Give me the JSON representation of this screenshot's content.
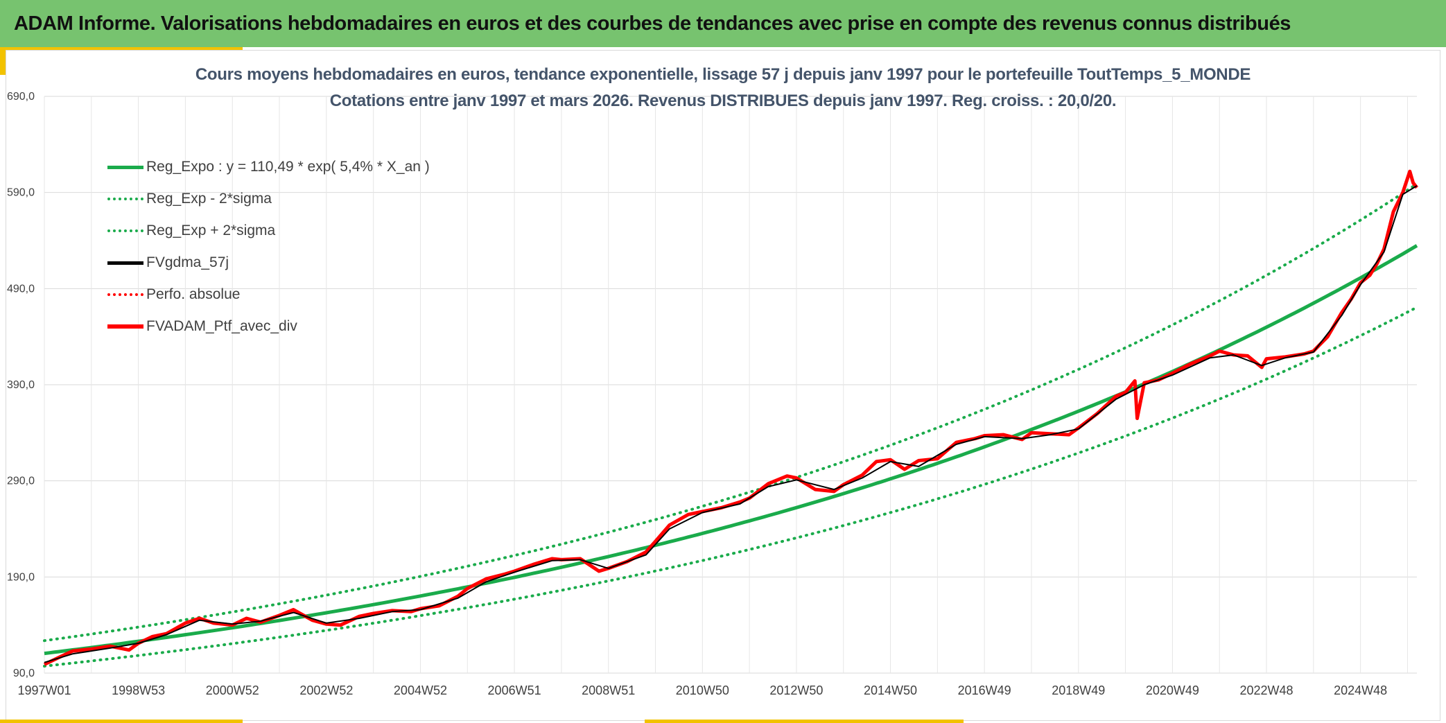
{
  "header": {
    "title": "ADAM Informe. Valorisations hebdomadaires en euros et des courbes de tendances avec prise en compte des revenus connus distribués"
  },
  "colors": {
    "header_bg": "#77c36f",
    "accent": "#f2c200",
    "regression": "#1aab4b",
    "price": "#ff0000",
    "smoothed": "#000000",
    "title_text": "#44546a"
  },
  "chart_data": {
    "type": "line",
    "title_line1": "Cours moyens hebdomadaires en euros, tendance exponentielle, lissage 57 j depuis janv 1997 pour le portefeuille ToutTemps_5_MONDE",
    "title_line2": "Cotations entre janv 1997 et mars 2026. Revenus DISTRIBUES depuis janv 1997. Reg. croiss. : 20,0/20.",
    "x_range": [
      1997.0,
      2026.2
    ],
    "ylim": [
      90,
      690
    ],
    "y_ticks": [
      90,
      190,
      290,
      390,
      490,
      590,
      690
    ],
    "y_tick_labels": [
      "90,0",
      "190,0",
      "290,0",
      "390,0",
      "490,0",
      "590,0",
      "690,0"
    ],
    "x_tick_labels": [
      "1997W01",
      "1998W53",
      "2000W52",
      "2002W52",
      "2004W52",
      "2006W51",
      "2008W51",
      "2010W50",
      "2012W50",
      "2014W50",
      "2016W49",
      "2018W49",
      "2020W49",
      "2022W48",
      "2024W48"
    ],
    "x_tick_positions": [
      1997.0,
      1999.0,
      2001.0,
      2003.0,
      2005.0,
      2007.0,
      2009.0,
      2011.0,
      2013.0,
      2015.0,
      2017.0,
      2019.0,
      2021.0,
      2023.0,
      2025.0
    ],
    "grid": true,
    "legend_position": "top-left",
    "legend": [
      {
        "label": "Reg_Expo : y = 110,49 * exp( 5,4% *  X_an )",
        "color": "#1aab4b",
        "style": "solid"
      },
      {
        "label": "Reg_Exp - 2*sigma",
        "color": "#1aab4b",
        "style": "dotted"
      },
      {
        "label": "Reg_Exp + 2*sigma",
        "color": "#1aab4b",
        "style": "dotted"
      },
      {
        "label": "FVgdma_57j",
        "color": "#000000",
        "style": "solid"
      },
      {
        "label": "Perfo. absolue",
        "color": "#ff0000",
        "style": "dotted"
      },
      {
        "label": "FVADAM_Ptf_avec_div",
        "color": "#ff0000",
        "style": "solid"
      }
    ],
    "regression": {
      "a": 110.49,
      "rate": 0.054,
      "start_year": 1997.0,
      "minus_2sigma_factor": 0.88,
      "plus_2sigma_factor": 1.12
    },
    "series": [
      {
        "name": "FVADAM_Ptf_avec_div",
        "x": [
          1997.0,
          1997.3,
          1997.6,
          1998.0,
          1998.4,
          1998.8,
          1999.0,
          1999.3,
          1999.6,
          2000.0,
          2000.3,
          2000.6,
          2001.0,
          2001.3,
          2001.6,
          2002.0,
          2002.3,
          2002.7,
          2003.0,
          2003.3,
          2003.7,
          2004.0,
          2004.4,
          2004.8,
          2005.0,
          2005.4,
          2005.8,
          2006.0,
          2006.4,
          2006.8,
          2007.0,
          2007.4,
          2007.8,
          2008.0,
          2008.4,
          2008.8,
          2009.0,
          2009.4,
          2009.8,
          2010.0,
          2010.3,
          2010.7,
          2011.0,
          2011.4,
          2011.8,
          2012.0,
          2012.4,
          2012.8,
          2013.0,
          2013.4,
          2013.8,
          2014.0,
          2014.4,
          2014.7,
          2015.0,
          2015.3,
          2015.6,
          2016.0,
          2016.4,
          2016.8,
          2017.0,
          2017.4,
          2017.8,
          2018.0,
          2018.4,
          2018.8,
          2019.0,
          2019.4,
          2019.8,
          2020.0,
          2020.2,
          2020.25,
          2020.4,
          2020.7,
          2021.0,
          2021.4,
          2021.8,
          2022.0,
          2022.3,
          2022.6,
          2022.9,
          2023.0,
          2023.4,
          2023.8,
          2024.0,
          2024.3,
          2024.6,
          2024.8,
          2025.0,
          2025.2,
          2025.35,
          2025.5,
          2025.7,
          2025.9,
          2026.05,
          2026.12,
          2026.2
        ],
        "values": [
          99,
          106,
          113,
          115,
          118,
          114,
          121,
          128,
          131,
          142,
          147,
          142,
          140,
          147,
          143,
          150,
          156,
          145,
          141,
          140,
          149,
          152,
          155,
          154,
          157,
          160,
          170,
          178,
          188,
          193,
          196,
          203,
          209,
          208,
          209,
          196,
          199,
          206,
          216,
          227,
          244,
          255,
          258,
          262,
          268,
          272,
          287,
          295,
          293,
          281,
          279,
          286,
          296,
          310,
          312,
          302,
          311,
          313,
          330,
          334,
          337,
          338,
          333,
          340,
          339,
          338,
          345,
          360,
          378,
          382,
          394,
          355,
          392,
          395,
          402,
          412,
          420,
          425,
          421,
          420,
          408,
          417,
          419,
          422,
          425,
          440,
          465,
          479,
          496,
          504,
          516,
          531,
          570,
          590,
          612,
          600,
          595
        ]
      },
      {
        "name": "FVgdma_57j",
        "x": [
          1997.0,
          1997.6,
          1998.4,
          1999.0,
          1999.6,
          2000.3,
          2001.0,
          2001.6,
          2002.3,
          2003.0,
          2003.7,
          2004.4,
          2005.0,
          2005.8,
          2006.4,
          2007.0,
          2007.8,
          2008.4,
          2009.0,
          2009.8,
          2010.3,
          2011.0,
          2011.8,
          2012.4,
          2013.0,
          2013.8,
          2014.4,
          2015.0,
          2015.6,
          2016.4,
          2017.0,
          2017.8,
          2018.4,
          2019.0,
          2019.8,
          2020.4,
          2021.0,
          2021.8,
          2022.3,
          2022.9,
          2023.4,
          2024.0,
          2024.6,
          2025.0,
          2025.5,
          2025.9,
          2026.2
        ],
        "values": [
          101,
          110,
          116,
          121,
          130,
          145,
          141,
          144,
          153,
          142,
          147,
          154,
          156,
          168,
          185,
          195,
          207,
          208,
          199,
          213,
          240,
          257,
          266,
          284,
          291,
          281,
          293,
          310,
          305,
          328,
          336,
          334,
          338,
          344,
          375,
          390,
          400,
          418,
          421,
          410,
          418,
          424,
          462,
          494,
          528,
          588,
          597
        ]
      }
    ]
  }
}
